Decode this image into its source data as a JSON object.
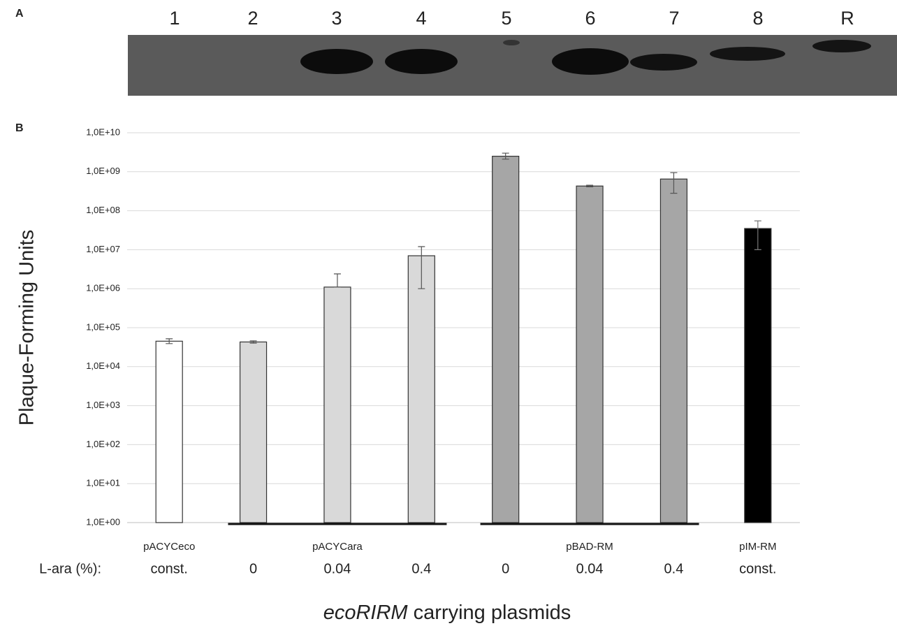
{
  "panel_a": {
    "label": "A",
    "lanes": [
      "1",
      "2",
      "3",
      "4",
      "5",
      "6",
      "7",
      "8",
      "R"
    ]
  },
  "chart_data": {
    "type": "bar",
    "panel_label": "B",
    "y_label": "Plaque-Forming Units",
    "x_label_italic": "ecoRIRM",
    "x_label": "carrying plasmids",
    "row_label": "L-ara (%):",
    "log_scale": true,
    "grid": true,
    "ylim": [
      1,
      10000000000
    ],
    "yticks": [
      {
        "value": 1,
        "label": "1,0E+00"
      },
      {
        "value": 10,
        "label": "1,0E+01"
      },
      {
        "value": 100,
        "label": "1,0E+02"
      },
      {
        "value": 1000,
        "label": "1,0E+03"
      },
      {
        "value": 10000,
        "label": "1,0E+04"
      },
      {
        "value": 100000,
        "label": "1,0E+05"
      },
      {
        "value": 1000000,
        "label": "1,0E+06"
      },
      {
        "value": 10000000,
        "label": "1,0E+07"
      },
      {
        "value": 100000000,
        "label": "1,0E+08"
      },
      {
        "value": 1000000000,
        "label": "1,0E+09"
      },
      {
        "value": 10000000000,
        "label": "1,0E+10"
      }
    ],
    "categories": [
      "const.",
      "0",
      "0.04",
      "0.4",
      "0",
      "0.04",
      "0.4",
      "const."
    ],
    "groups": [
      {
        "name": "pACYCeco",
        "size": 1
      },
      {
        "name": "pACYCara",
        "size": 3
      },
      {
        "name": "pBAD-RM",
        "size": 3
      },
      {
        "name": "pIM-RM",
        "size": 1
      }
    ],
    "values": [
      45000,
      43000,
      1100000,
      7000000,
      2500000000,
      430000000,
      650000000,
      35000000
    ],
    "error_upper": [
      7000,
      3000,
      1300000,
      5000000,
      500000000,
      20000000,
      300000000,
      20000000
    ],
    "error_lower": [
      6000,
      3000,
      0,
      6000000,
      400000000,
      20000000,
      370000000,
      25000000
    ],
    "colors": [
      "#ffffff",
      "#d9d9d9",
      "#d9d9d9",
      "#d9d9d9",
      "#a6a6a6",
      "#a6a6a6",
      "#a6a6a6",
      "#000000"
    ]
  }
}
